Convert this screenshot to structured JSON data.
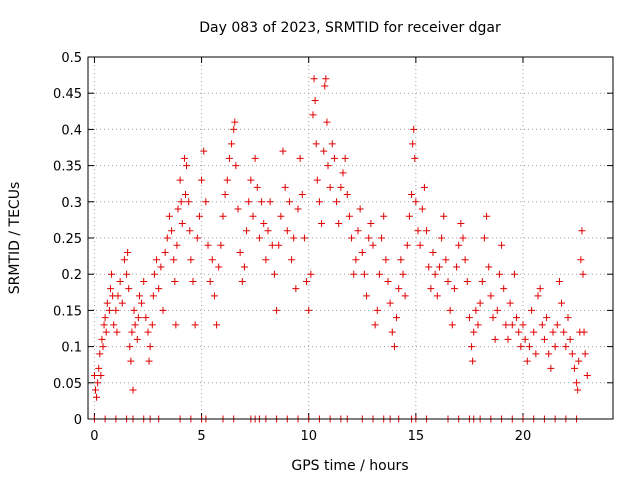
{
  "chart_data": {
    "type": "scatter",
    "title": "Day 083 of 2023, SRMTID for receiver dgar",
    "xlabel": "GPS time / hours",
    "ylabel": "SRMTID / TECUs",
    "xlim": [
      -0.3,
      24.2
    ],
    "ylim": [
      0,
      0.5
    ],
    "x_ticks": [
      0,
      5,
      10,
      15,
      20
    ],
    "x_tick_labels": [
      "0",
      "5",
      "10",
      "15",
      "20"
    ],
    "y_ticks": [
      0,
      0.05,
      0.1,
      0.15,
      0.2,
      0.25,
      0.3,
      0.35,
      0.4,
      0.45,
      0.5
    ],
    "y_tick_labels": [
      "0",
      "0.05",
      "0.1",
      "0.15",
      "0.2",
      "0.25",
      "0.3",
      "0.35",
      "0.4",
      "0.45",
      "0.5"
    ],
    "grid": true,
    "marker": "+",
    "marker_color": "#e00000",
    "series": [
      {
        "name": "SRMTID",
        "points": [
          [
            0.0,
            0.06
          ],
          [
            0.05,
            0.04
          ],
          [
            0.1,
            0.03
          ],
          [
            0.15,
            0.05
          ],
          [
            0.2,
            0.07
          ],
          [
            0.25,
            0.09
          ],
          [
            0.3,
            0.06
          ],
          [
            0.35,
            0.11
          ],
          [
            0.4,
            0.1
          ],
          [
            0.45,
            0.13
          ],
          [
            0.5,
            0.14
          ],
          [
            0.55,
            0.12
          ],
          [
            0.6,
            0.16
          ],
          [
            0.7,
            0.15
          ],
          [
            0.75,
            0.18
          ],
          [
            0.8,
            0.2
          ],
          [
            0.85,
            0.17
          ],
          [
            0.9,
            0.13
          ],
          [
            1.0,
            0.15
          ],
          [
            1.05,
            0.12
          ],
          [
            1.1,
            0.17
          ],
          [
            1.2,
            0.19
          ],
          [
            1.3,
            0.16
          ],
          [
            1.4,
            0.22
          ],
          [
            1.5,
            0.2
          ],
          [
            1.55,
            0.23
          ],
          [
            1.6,
            0.18
          ],
          [
            1.65,
            0.1
          ],
          [
            1.7,
            0.08
          ],
          [
            1.75,
            0.12
          ],
          [
            1.8,
            0.04
          ],
          [
            1.85,
            0.15
          ],
          [
            1.9,
            0.13
          ],
          [
            2.0,
            0.11
          ],
          [
            2.05,
            0.14
          ],
          [
            2.1,
            0.17
          ],
          [
            2.2,
            0.16
          ],
          [
            2.3,
            0.19
          ],
          [
            2.4,
            0.14
          ],
          [
            2.5,
            0.12
          ],
          [
            2.55,
            0.08
          ],
          [
            2.6,
            0.1
          ],
          [
            2.7,
            0.13
          ],
          [
            2.75,
            0.17
          ],
          [
            2.8,
            0.2
          ],
          [
            2.9,
            0.22
          ],
          [
            3.0,
            0.18
          ],
          [
            3.1,
            0.21
          ],
          [
            3.2,
            0.15
          ],
          [
            3.3,
            0.23
          ],
          [
            3.4,
            0.25
          ],
          [
            3.5,
            0.28
          ],
          [
            3.6,
            0.26
          ],
          [
            3.7,
            0.22
          ],
          [
            3.75,
            0.19
          ],
          [
            3.8,
            0.13
          ],
          [
            3.85,
            0.24
          ],
          [
            3.9,
            0.29
          ],
          [
            4.0,
            0.33
          ],
          [
            4.05,
            0.3
          ],
          [
            4.1,
            0.27
          ],
          [
            4.2,
            0.36
          ],
          [
            4.25,
            0.31
          ],
          [
            4.3,
            0.35
          ],
          [
            4.4,
            0.3
          ],
          [
            4.45,
            0.26
          ],
          [
            4.5,
            0.22
          ],
          [
            4.6,
            0.19
          ],
          [
            4.7,
            0.13
          ],
          [
            4.8,
            0.25
          ],
          [
            4.9,
            0.28
          ],
          [
            5.0,
            0.33
          ],
          [
            5.1,
            0.37
          ],
          [
            5.2,
            0.3
          ],
          [
            5.3,
            0.24
          ],
          [
            5.4,
            0.19
          ],
          [
            5.5,
            0.22
          ],
          [
            5.6,
            0.17
          ],
          [
            5.7,
            0.13
          ],
          [
            5.8,
            0.21
          ],
          [
            5.9,
            0.24
          ],
          [
            6.0,
            0.28
          ],
          [
            6.1,
            0.31
          ],
          [
            6.2,
            0.33
          ],
          [
            6.3,
            0.36
          ],
          [
            6.4,
            0.38
          ],
          [
            6.5,
            0.4
          ],
          [
            6.55,
            0.41
          ],
          [
            6.6,
            0.35
          ],
          [
            6.7,
            0.29
          ],
          [
            6.8,
            0.23
          ],
          [
            6.9,
            0.19
          ],
          [
            7.0,
            0.21
          ],
          [
            7.1,
            0.26
          ],
          [
            7.2,
            0.3
          ],
          [
            7.3,
            0.33
          ],
          [
            7.4,
            0.28
          ],
          [
            7.5,
            0.36
          ],
          [
            7.6,
            0.32
          ],
          [
            7.7,
            0.25
          ],
          [
            7.8,
            0.3
          ],
          [
            7.9,
            0.27
          ],
          [
            8.0,
            0.22
          ],
          [
            8.1,
            0.26
          ],
          [
            8.2,
            0.3
          ],
          [
            8.3,
            0.24
          ],
          [
            8.4,
            0.2
          ],
          [
            8.5,
            0.15
          ],
          [
            8.6,
            0.24
          ],
          [
            8.7,
            0.28
          ],
          [
            8.8,
            0.37
          ],
          [
            8.9,
            0.32
          ],
          [
            9.0,
            0.26
          ],
          [
            9.1,
            0.3
          ],
          [
            9.2,
            0.22
          ],
          [
            9.3,
            0.25
          ],
          [
            9.4,
            0.18
          ],
          [
            9.5,
            0.29
          ],
          [
            9.6,
            0.36
          ],
          [
            9.7,
            0.31
          ],
          [
            9.8,
            0.25
          ],
          [
            9.9,
            0.19
          ],
          [
            10.0,
            0.15
          ],
          [
            10.1,
            0.2
          ],
          [
            10.2,
            0.42
          ],
          [
            10.25,
            0.47
          ],
          [
            10.3,
            0.44
          ],
          [
            10.35,
            0.38
          ],
          [
            10.4,
            0.33
          ],
          [
            10.5,
            0.3
          ],
          [
            10.6,
            0.27
          ],
          [
            10.7,
            0.37
          ],
          [
            10.75,
            0.46
          ],
          [
            10.8,
            0.47
          ],
          [
            10.85,
            0.41
          ],
          [
            10.9,
            0.35
          ],
          [
            11.0,
            0.32
          ],
          [
            11.1,
            0.38
          ],
          [
            11.2,
            0.36
          ],
          [
            11.3,
            0.3
          ],
          [
            11.4,
            0.27
          ],
          [
            11.5,
            0.32
          ],
          [
            11.6,
            0.34
          ],
          [
            11.7,
            0.36
          ],
          [
            11.8,
            0.31
          ],
          [
            11.9,
            0.28
          ],
          [
            12.0,
            0.25
          ],
          [
            12.1,
            0.2
          ],
          [
            12.2,
            0.22
          ],
          [
            12.3,
            0.26
          ],
          [
            12.4,
            0.29
          ],
          [
            12.5,
            0.23
          ],
          [
            12.6,
            0.2
          ],
          [
            12.7,
            0.17
          ],
          [
            12.8,
            0.25
          ],
          [
            12.9,
            0.27
          ],
          [
            13.0,
            0.24
          ],
          [
            13.1,
            0.13
          ],
          [
            13.2,
            0.15
          ],
          [
            13.3,
            0.2
          ],
          [
            13.4,
            0.25
          ],
          [
            13.5,
            0.28
          ],
          [
            13.6,
            0.22
          ],
          [
            13.7,
            0.19
          ],
          [
            13.8,
            0.16
          ],
          [
            13.9,
            0.12
          ],
          [
            14.0,
            0.1
          ],
          [
            14.1,
            0.14
          ],
          [
            14.2,
            0.18
          ],
          [
            14.3,
            0.22
          ],
          [
            14.4,
            0.2
          ],
          [
            14.5,
            0.17
          ],
          [
            14.6,
            0.24
          ],
          [
            14.7,
            0.28
          ],
          [
            14.8,
            0.31
          ],
          [
            14.85,
            0.38
          ],
          [
            14.9,
            0.4
          ],
          [
            14.95,
            0.36
          ],
          [
            15.0,
            0.3
          ],
          [
            15.1,
            0.26
          ],
          [
            15.2,
            0.24
          ],
          [
            15.3,
            0.29
          ],
          [
            15.4,
            0.32
          ],
          [
            15.5,
            0.26
          ],
          [
            15.6,
            0.21
          ],
          [
            15.7,
            0.18
          ],
          [
            15.8,
            0.23
          ],
          [
            15.9,
            0.2
          ],
          [
            16.0,
            0.17
          ],
          [
            16.1,
            0.21
          ],
          [
            16.2,
            0.25
          ],
          [
            16.3,
            0.28
          ],
          [
            16.4,
            0.22
          ],
          [
            16.5,
            0.19
          ],
          [
            16.6,
            0.15
          ],
          [
            16.7,
            0.13
          ],
          [
            16.8,
            0.18
          ],
          [
            16.9,
            0.21
          ],
          [
            17.0,
            0.24
          ],
          [
            17.1,
            0.27
          ],
          [
            17.2,
            0.25
          ],
          [
            17.3,
            0.22
          ],
          [
            17.4,
            0.19
          ],
          [
            17.5,
            0.14
          ],
          [
            17.6,
            0.1
          ],
          [
            17.65,
            0.08
          ],
          [
            17.7,
            0.12
          ],
          [
            17.8,
            0.15
          ],
          [
            17.9,
            0.13
          ],
          [
            18.0,
            0.16
          ],
          [
            18.1,
            0.19
          ],
          [
            18.2,
            0.25
          ],
          [
            18.3,
            0.28
          ],
          [
            18.4,
            0.21
          ],
          [
            18.5,
            0.17
          ],
          [
            18.6,
            0.14
          ],
          [
            18.7,
            0.11
          ],
          [
            18.8,
            0.15
          ],
          [
            18.9,
            0.2
          ],
          [
            19.0,
            0.24
          ],
          [
            19.1,
            0.18
          ],
          [
            19.2,
            0.13
          ],
          [
            19.3,
            0.11
          ],
          [
            19.4,
            0.16
          ],
          [
            19.5,
            0.13
          ],
          [
            19.6,
            0.2
          ],
          [
            19.7,
            0.14
          ],
          [
            19.8,
            0.12
          ],
          [
            19.9,
            0.1
          ],
          [
            20.0,
            0.13
          ],
          [
            20.1,
            0.11
          ],
          [
            20.2,
            0.08
          ],
          [
            20.3,
            0.1
          ],
          [
            20.4,
            0.15
          ],
          [
            20.5,
            0.12
          ],
          [
            20.6,
            0.09
          ],
          [
            20.7,
            0.17
          ],
          [
            20.8,
            0.18
          ],
          [
            20.9,
            0.13
          ],
          [
            21.0,
            0.11
          ],
          [
            21.1,
            0.14
          ],
          [
            21.2,
            0.09
          ],
          [
            21.3,
            0.07
          ],
          [
            21.4,
            0.12
          ],
          [
            21.5,
            0.1
          ],
          [
            21.6,
            0.13
          ],
          [
            21.7,
            0.19
          ],
          [
            21.8,
            0.16
          ],
          [
            21.9,
            0.12
          ],
          [
            22.0,
            0.1
          ],
          [
            22.1,
            0.14
          ],
          [
            22.2,
            0.11
          ],
          [
            22.3,
            0.09
          ],
          [
            22.4,
            0.07
          ],
          [
            22.5,
            0.05
          ],
          [
            22.55,
            0.04
          ],
          [
            22.6,
            0.08
          ],
          [
            22.65,
            0.12
          ],
          [
            22.7,
            0.22
          ],
          [
            22.75,
            0.26
          ],
          [
            22.8,
            0.2
          ],
          [
            22.85,
            0.12
          ],
          [
            22.9,
            0.09
          ],
          [
            23.0,
            0.06
          ]
        ]
      }
    ],
    "zero_markers_x": [
      0.0,
      0.5,
      1.0,
      1.5,
      1.8,
      2.3,
      2.6,
      3.0,
      4.0,
      4.5,
      5.0,
      5.2,
      6.0,
      6.5,
      7.3,
      7.5,
      7.7,
      8.0,
      8.5,
      9.0,
      9.5,
      10.0,
      10.5,
      11.0,
      11.5,
      11.8,
      12.5,
      13.0,
      13.5,
      13.8,
      14.2,
      14.8,
      15.0,
      15.5,
      16.5,
      17.0,
      17.5,
      17.7,
      18.0,
      18.5,
      19.0,
      19.5,
      20.0,
      20.5,
      21.0,
      21.5,
      22.0,
      22.5
    ]
  }
}
